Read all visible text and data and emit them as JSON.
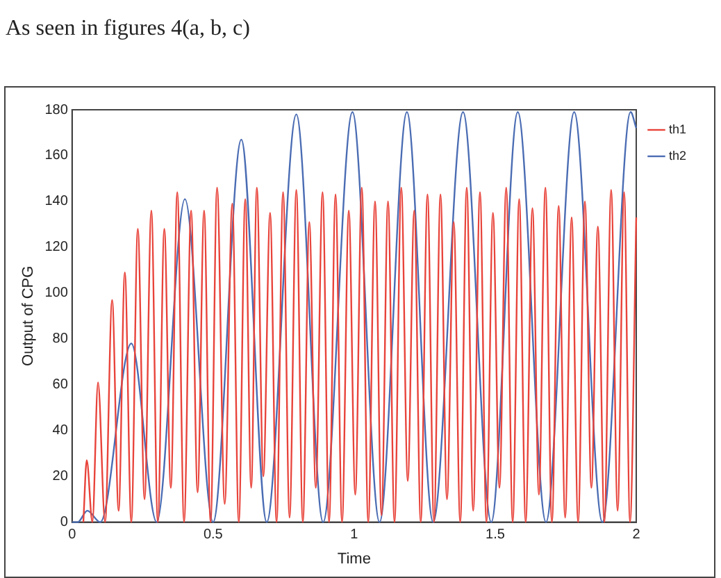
{
  "chart_data": {
    "type": "line",
    "xlabel": "Time",
    "ylabel": "Output of CPG",
    "annotations": [
      "As seen in figures 4(a, b, c)"
    ],
    "xlim": [
      0,
      2
    ],
    "xticks": [
      0,
      0.5,
      1,
      1.5,
      2
    ],
    "ylim": [
      0,
      180
    ],
    "yticks": [
      0,
      20,
      40,
      60,
      80,
      100,
      120,
      140,
      160,
      180
    ],
    "grid": false,
    "legend": "top right",
    "marker": "none",
    "line_style": "solid",
    "series": [
      {
        "name": "th1",
        "color": "#e8433a",
        "x": [
          0.04,
          0.052,
          0.072,
          0.092,
          0.117,
          0.142,
          0.165,
          0.187,
          0.21,
          0.233,
          0.257,
          0.281,
          0.304,
          0.327,
          0.35,
          0.373,
          0.397,
          0.422,
          0.445,
          0.468,
          0.491,
          0.514,
          0.541,
          0.568,
          0.591,
          0.614,
          0.635,
          0.655,
          0.678,
          0.702,
          0.725,
          0.748,
          0.771,
          0.795,
          0.818,
          0.841,
          0.864,
          0.888,
          0.911,
          0.934,
          0.957,
          0.981,
          1.004,
          1.027,
          1.05,
          1.074,
          1.097,
          1.12,
          1.143,
          1.167,
          1.19,
          1.213,
          1.236,
          1.26,
          1.283,
          1.306,
          1.329,
          1.353,
          1.376,
          1.399,
          1.422,
          1.446,
          1.469,
          1.492,
          1.515,
          1.539,
          1.562,
          1.585,
          1.608,
          1.632,
          1.655,
          1.678,
          1.701,
          1.725,
          1.748,
          1.771,
          1.794,
          1.818,
          1.841,
          1.864,
          1.887,
          1.911,
          1.934,
          1.957,
          1.978,
          2
        ],
        "values": [
          0,
          27,
          0,
          61,
          0,
          97,
          5,
          109,
          0,
          128,
          10,
          136,
          0,
          128,
          15,
          144,
          0,
          136,
          13,
          136,
          0,
          146,
          8,
          139,
          0,
          141,
          15,
          146,
          20,
          135,
          0,
          144,
          2,
          145,
          0,
          131,
          15,
          144,
          0,
          143,
          0,
          136,
          12,
          146,
          0,
          140,
          3,
          140,
          0,
          146,
          18,
          136,
          0,
          143,
          0,
          143,
          10,
          131,
          0,
          146,
          5,
          144,
          0,
          135,
          15,
          146,
          0,
          141,
          0,
          137,
          12,
          146,
          0,
          138,
          2,
          133,
          0,
          140,
          15,
          129,
          0,
          145,
          5,
          144,
          0,
          133
        ]
      },
      {
        "name": "th2",
        "color": "#4a6cb3",
        "x": [
          0,
          0.02,
          0.054,
          0.1,
          0.21,
          0.3,
          0.4,
          0.5,
          0.6,
          0.69,
          0.795,
          0.89,
          0.994,
          1.09,
          1.187,
          1.28,
          1.386,
          1.486,
          1.58,
          1.68,
          1.78,
          1.88,
          1.98,
          2
        ],
        "values": [
          0,
          0,
          5,
          0,
          78,
          0,
          141,
          0,
          167,
          0,
          178,
          0,
          179,
          0,
          179,
          0,
          179,
          0,
          179,
          0,
          179,
          0,
          179,
          172
        ]
      }
    ]
  }
}
